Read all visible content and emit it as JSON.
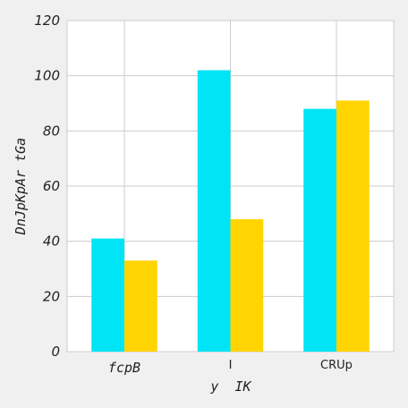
{
  "chart_data": {
    "type": "bar",
    "title": "",
    "xlabel": "y  IK",
    "ylabel": "DnJpKpAr tGa",
    "categories": [
      "fcpB",
      "I",
      "CRUp"
    ],
    "series": [
      {
        "values": [
          41,
          102,
          88
        ],
        "color": "#00e5f5"
      },
      {
        "values": [
          33,
          48,
          91
        ],
        "color": "#ffd400"
      }
    ],
    "ylim": [
      0,
      120
    ],
    "yticks": [
      0,
      20,
      40,
      60,
      80,
      100,
      120
    ],
    "grid": true,
    "legend": "none"
  },
  "colors": {
    "figure_background": "#f0f0f0",
    "plot_background": "#ffffff",
    "grid": "#cccccc"
  }
}
